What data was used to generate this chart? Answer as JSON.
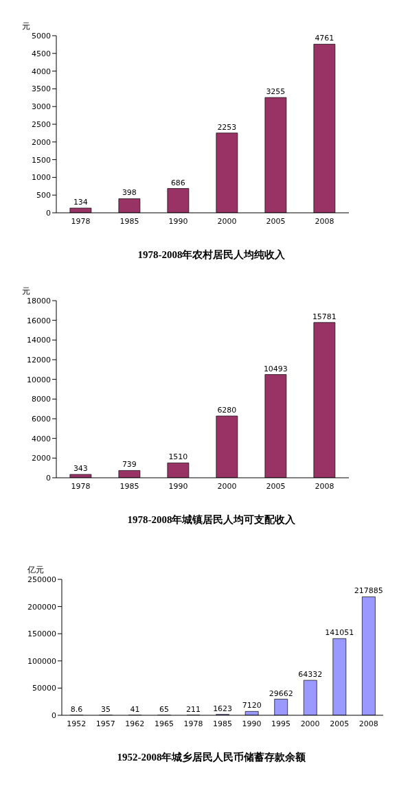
{
  "chart_data": [
    {
      "type": "bar",
      "title": "1978-2008年农村居民人均纯收入",
      "ylabel": "元",
      "categories": [
        "1978",
        "1985",
        "1990",
        "2000",
        "2005",
        "2008"
      ],
      "values": [
        134,
        398,
        686,
        2253,
        3255,
        4761
      ],
      "color": "#993366",
      "ylim": [
        0,
        5000
      ],
      "yticks": [
        0,
        500,
        1000,
        1500,
        2000,
        2500,
        3000,
        3500,
        4000,
        4500,
        5000
      ],
      "data_labels": true
    },
    {
      "type": "bar",
      "title": "1978-2008年城镇居民人均可支配收入",
      "ylabel": "元",
      "categories": [
        "1978",
        "1985",
        "1990",
        "2000",
        "2005",
        "2008"
      ],
      "values": [
        343,
        739,
        1510,
        6280,
        10493,
        15781
      ],
      "color": "#993366",
      "ylim": [
        0,
        18000
      ],
      "yticks": [
        0,
        2000,
        4000,
        6000,
        8000,
        10000,
        12000,
        14000,
        16000,
        18000
      ],
      "data_labels": true
    },
    {
      "type": "bar",
      "title": "1952-2008年城乡居民人民币储蓄存款余额",
      "ylabel": "亿元",
      "categories": [
        "1952",
        "1957",
        "1962",
        "1965",
        "1978",
        "1985",
        "1990",
        "1995",
        "2000",
        "2005",
        "2008"
      ],
      "values": [
        8.6,
        35,
        41,
        65,
        211,
        1623,
        7120,
        29662,
        64332,
        141051,
        217885
      ],
      "color": "#9999ff",
      "ylim": [
        0,
        250000
      ],
      "yticks": [
        0,
        50000,
        100000,
        150000,
        200000,
        250000
      ],
      "data_labels": true
    }
  ]
}
